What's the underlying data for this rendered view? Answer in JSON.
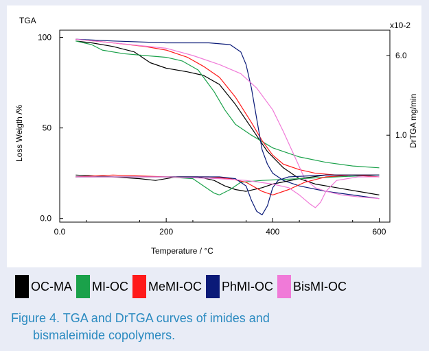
{
  "caption": {
    "line1": "Figure 4. TGA and DrTGA curves of imides and",
    "line2": "bismaleimide copolymers."
  },
  "legend": [
    {
      "label": "OC-MA",
      "color": "#000000"
    },
    {
      "label": "MI-OC",
      "color": "#1aa14a"
    },
    {
      "label": "MeMI-OC",
      "color": "#ff1a1a"
    },
    {
      "label": "PhMI-OC",
      "color": "#0a1a78"
    },
    {
      "label": "BisMI-OC",
      "color": "#f07ad8"
    }
  ],
  "chart_data": {
    "type": "line",
    "title": "TGA",
    "xlabel": "Temperature / °C",
    "ylabel": "Loss Weigth /%",
    "ylabel_right": "DrTGA mg/min",
    "right_axis_multiplier": "x10-2",
    "xlim": [
      0,
      620
    ],
    "ylim": [
      -2,
      104
    ],
    "x_ticks": [
      "0.0",
      "200",
      "400",
      "600"
    ],
    "y_ticks": [
      "0.0",
      "50",
      "100"
    ],
    "y_right_ticks": [
      "1.0",
      "6.0"
    ],
    "grid": false,
    "legend_position": "bottom",
    "tga_series": [
      {
        "name": "OC-MA",
        "color": "#000000",
        "x": [
          30,
          60,
          100,
          140,
          170,
          200,
          240,
          270,
          300,
          330,
          360,
          390,
          420,
          450,
          480,
          520,
          560,
          600
        ],
        "y": [
          98,
          97,
          95,
          92,
          86,
          83,
          81,
          79,
          74,
          63,
          50,
          37,
          28,
          22,
          19,
          17,
          15,
          13
        ]
      },
      {
        "name": "MI-OC",
        "color": "#1aa14a",
        "x": [
          30,
          60,
          80,
          120,
          160,
          200,
          230,
          260,
          290,
          310,
          330,
          360,
          400,
          450,
          500,
          550,
          600
        ],
        "y": [
          98,
          96,
          93,
          91,
          90,
          89,
          87,
          82,
          70,
          60,
          52,
          46,
          39,
          34,
          31,
          29,
          28
        ]
      },
      {
        "name": "MeMI-OC",
        "color": "#ff1a1a",
        "x": [
          30,
          100,
          160,
          200,
          240,
          270,
          300,
          330,
          360,
          380,
          400,
          420,
          450,
          480,
          520,
          560,
          600
        ],
        "y": [
          99,
          97,
          95,
          93,
          89,
          84,
          78,
          67,
          53,
          43,
          35,
          30,
          27,
          25,
          24,
          24,
          24
        ]
      },
      {
        "name": "PhMI-OC",
        "color": "#0a1a78",
        "x": [
          30,
          100,
          200,
          280,
          320,
          340,
          350,
          360,
          370,
          380,
          390,
          400,
          420,
          450,
          500,
          550,
          600
        ],
        "y": [
          99,
          98,
          97,
          97,
          96,
          92,
          85,
          72,
          55,
          38,
          30,
          25,
          21,
          18,
          15,
          13,
          11
        ]
      },
      {
        "name": "BisMI-OC",
        "color": "#f07ad8",
        "x": [
          30,
          100,
          200,
          250,
          300,
          340,
          370,
          400,
          420,
          440,
          460,
          480,
          500,
          530,
          560,
          600
        ],
        "y": [
          99,
          97,
          94,
          90,
          85,
          80,
          72,
          60,
          48,
          35,
          22,
          17,
          15,
          13,
          12,
          11
        ]
      }
    ],
    "drtga_series": [
      {
        "name": "OC-MA",
        "color": "#000000",
        "x": [
          30,
          100,
          150,
          180,
          220,
          260,
          290,
          310,
          330,
          350,
          380,
          400,
          450,
          500,
          550,
          600
        ],
        "y": [
          24,
          23,
          22,
          21,
          23,
          23,
          21,
          18,
          16,
          15,
          17,
          19,
          22,
          24,
          24,
          24
        ]
      },
      {
        "name": "MI-OC",
        "color": "#1aa14a",
        "x": [
          30,
          100,
          200,
          250,
          270,
          290,
          300,
          320,
          340,
          380,
          450,
          520,
          600
        ],
        "y": [
          23,
          23,
          23,
          22,
          18,
          14,
          13,
          16,
          20,
          21,
          22,
          23,
          24
        ]
      },
      {
        "name": "MeMI-OC",
        "color": "#ff1a1a",
        "x": [
          30,
          100,
          200,
          280,
          320,
          350,
          380,
          400,
          430,
          460,
          500,
          550,
          600
        ],
        "y": [
          23,
          24,
          23,
          23,
          22,
          20,
          15,
          13,
          16,
          20,
          23,
          24,
          23
        ]
      },
      {
        "name": "PhMI-OC",
        "color": "#0a1a78",
        "x": [
          30,
          100,
          200,
          300,
          330,
          350,
          360,
          370,
          380,
          390,
          400,
          410,
          430,
          500,
          550,
          600
        ],
        "y": [
          23,
          23,
          23,
          23,
          22,
          18,
          10,
          4,
          2,
          7,
          17,
          21,
          23,
          24,
          24,
          24
        ]
      },
      {
        "name": "BisMI-OC",
        "color": "#f07ad8",
        "x": [
          30,
          100,
          200,
          300,
          350,
          400,
          430,
          450,
          470,
          480,
          490,
          500,
          520,
          560,
          600
        ],
        "y": [
          23,
          23,
          23,
          22,
          21,
          19,
          17,
          13,
          8,
          6,
          9,
          15,
          21,
          23,
          23
        ]
      }
    ]
  }
}
